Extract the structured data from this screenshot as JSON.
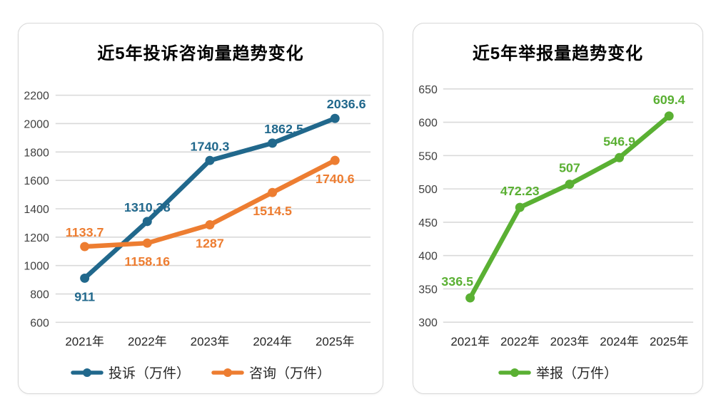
{
  "page": {
    "background": "#ffffff"
  },
  "colors": {
    "complaint_blue": "#21688c",
    "consult_orange": "#ed7d31",
    "report_green": "#5ab033",
    "gridline": "#d9d9d9",
    "tick_text": "#3f3f3f",
    "axis_text": "#262626",
    "title_text": "#000000",
    "card_border": "#d8d8d8"
  },
  "chart_data": [
    {
      "type": "line",
      "title": "近5年投诉咨询量趋势变化",
      "categories": [
        "2021年",
        "2022年",
        "2023年",
        "2024年",
        "2025年"
      ],
      "series": [
        {
          "name": "投诉（万件）",
          "color": "#21688c",
          "values": [
            911,
            1310.38,
            1740.3,
            1862.5,
            2036.6
          ],
          "labels": [
            "911",
            "1310.38",
            "1740.3",
            "1862.5",
            "2036.6"
          ],
          "label_positions": [
            "below",
            "above",
            "above",
            "above-right",
            "above-right"
          ]
        },
        {
          "name": "咨询（万件）",
          "color": "#ed7d31",
          "values": [
            1133.7,
            1158.16,
            1287,
            1514.5,
            1740.6
          ],
          "labels": [
            "1133.7",
            "1158.16",
            "1287",
            "1514.5",
            "1740.6"
          ],
          "label_positions": [
            "above",
            "below",
            "below",
            "below",
            "below"
          ]
        }
      ],
      "xlabel": "",
      "ylabel": "",
      "ylim": [
        600,
        2200
      ],
      "ytick_step": 200,
      "yticks": [
        600,
        800,
        1000,
        1200,
        1400,
        1600,
        1800,
        2000,
        2200
      ],
      "grid": true,
      "legend_position": "bottom"
    },
    {
      "type": "line",
      "title": "近5年举报量趋势变化",
      "categories": [
        "2021年",
        "2022年",
        "2023年",
        "2024年",
        "2025年"
      ],
      "series": [
        {
          "name": "举报（万件）",
          "color": "#5ab033",
          "values": [
            336.5,
            472.23,
            507,
            546.9,
            609.4
          ],
          "labels": [
            "336.5",
            "472.23",
            "507",
            "546.9",
            "609.4"
          ],
          "label_positions": [
            "above-left",
            "above",
            "above",
            "above",
            "above"
          ]
        }
      ],
      "xlabel": "",
      "ylabel": "",
      "ylim": [
        300,
        650
      ],
      "ytick_step": 50,
      "yticks": [
        300,
        350,
        400,
        450,
        500,
        550,
        600,
        650
      ],
      "grid": true,
      "legend_position": "bottom"
    }
  ]
}
